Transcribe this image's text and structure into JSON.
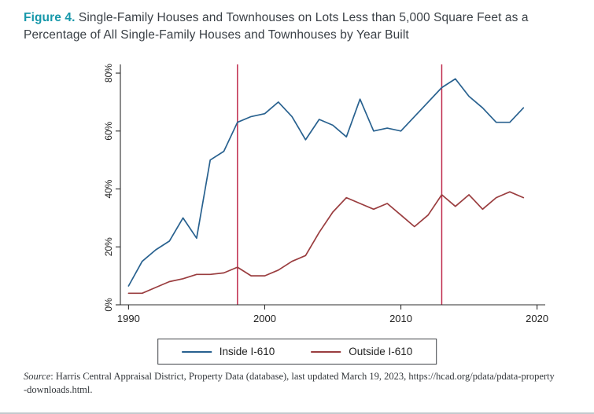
{
  "figure": {
    "label": "Figure 4.",
    "title": " Single-Family Houses and Townhouses on Lots Less than 5,000 Square Feet as a Percentage of All Single-Family Houses and Townhouses by Year Built"
  },
  "colors": {
    "figure_label": "#1798aa",
    "inside_line": "#28618f",
    "outside_line": "#9a3d3f",
    "reference_line": "#bf2a4c",
    "axis": "#2e2e2e"
  },
  "chart_data": {
    "type": "line",
    "title": "Single-Family Houses and Townhouses on Lots Less than 5,000 Square Feet as a Percentage of All Single-Family Houses and Townhouses by Year Built",
    "xlabel": "",
    "ylabel": "",
    "grid": false,
    "legend_position": "bottom-center",
    "xlim": [
      1989.4,
      2020.6
    ],
    "ylim": [
      0,
      83
    ],
    "x_ticks": [
      1990,
      2000,
      2010,
      2020
    ],
    "y_ticks": [
      0,
      20,
      40,
      60,
      80
    ],
    "y_tick_labels": [
      "0%",
      "20%",
      "40%",
      "60%",
      "80%"
    ],
    "x": [
      1990,
      1991,
      1992,
      1993,
      1994,
      1995,
      1996,
      1997,
      1998,
      1999,
      2000,
      2001,
      2002,
      2003,
      2004,
      2005,
      2006,
      2007,
      2008,
      2009,
      2010,
      2011,
      2012,
      2013,
      2014,
      2015,
      2016,
      2017,
      2018,
      2019
    ],
    "series": [
      {
        "name": "Inside I-610",
        "color": "#28618f",
        "values": [
          6.5,
          15,
          19,
          22,
          30,
          23,
          50,
          53,
          63,
          65,
          66,
          70,
          65,
          57,
          64,
          62,
          58,
          71,
          60,
          61,
          60,
          65,
          70,
          75,
          78,
          72,
          68,
          63,
          63,
          68
        ]
      },
      {
        "name": "Outside I-610",
        "color": "#9a3d3f",
        "values": [
          4,
          4,
          6,
          8,
          9,
          10.5,
          10.5,
          11,
          13,
          10,
          10,
          12,
          15,
          17,
          25,
          32,
          37,
          35,
          33,
          35,
          31,
          27,
          31,
          38,
          34,
          38,
          33,
          37,
          39,
          37
        ]
      }
    ],
    "reference_lines": {
      "x": [
        1998,
        2013
      ],
      "color": "#bf2a4c"
    }
  },
  "legend": {
    "items": [
      {
        "label": "Inside I-610"
      },
      {
        "label": "Outside I-610"
      }
    ]
  },
  "source": {
    "label": "Source",
    "line1": ": Harris Central Appraisal District, Property Data (database), last updated March 19, 2023, https://hcad.org/pdata/pdata-property",
    "line2": "-downloads.html."
  }
}
